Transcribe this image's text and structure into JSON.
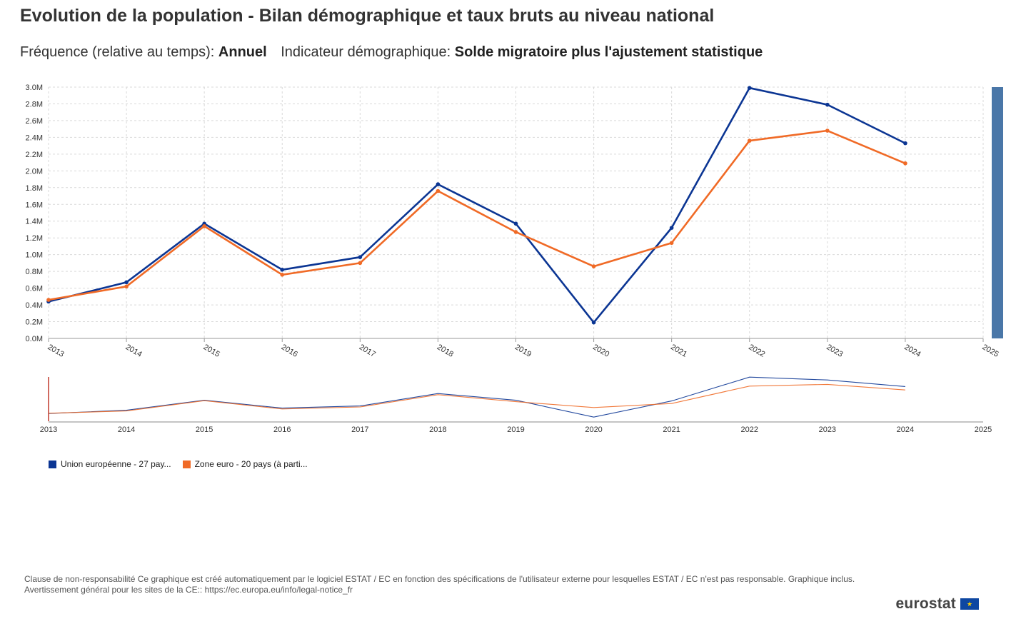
{
  "header": {
    "title": "Evolution de la population - Bilan démographique et taux bruts au niveau national",
    "frequency_label": "Fréquence (relative au temps):",
    "frequency_value": "Annuel",
    "indicator_label": "Indicateur démographique:",
    "indicator_value": "Solde migratoire plus l'ajustement statistique"
  },
  "chart_data": {
    "type": "line",
    "title": "Evolution de la population - Bilan démographique et taux bruts au niveau national",
    "x": [
      2013,
      2014,
      2015,
      2016,
      2017,
      2018,
      2019,
      2020,
      2021,
      2022,
      2023,
      2024
    ],
    "x_ticks": [
      "2013",
      "2014",
      "2015",
      "2016",
      "2017",
      "2018",
      "2019",
      "2020",
      "2021",
      "2022",
      "2023",
      "2024",
      "2025"
    ],
    "xlim": [
      2013,
      2025
    ],
    "ylim": [
      0,
      3.0
    ],
    "y_ticks": [
      "0.0M",
      "0.2M",
      "0.4M",
      "0.6M",
      "0.8M",
      "1.0M",
      "1.2M",
      "1.4M",
      "1.6M",
      "1.8M",
      "2.0M",
      "2.2M",
      "2.4M",
      "2.6M",
      "2.8M",
      "3.0M"
    ],
    "y_unit": "millions",
    "grid": true,
    "series": [
      {
        "name": "Union européenne - 27 pay...",
        "color": "#0b3593",
        "values": [
          0.44,
          0.67,
          1.37,
          0.82,
          0.97,
          1.84,
          1.37,
          0.19,
          1.32,
          2.99,
          2.79,
          2.33
        ]
      },
      {
        "name": "Zone euro - 20 pays (à parti...",
        "color": "#f06a26",
        "values": [
          0.46,
          0.62,
          1.34,
          0.76,
          0.9,
          1.76,
          1.27,
          0.86,
          1.14,
          2.36,
          2.48,
          2.09
        ]
      }
    ],
    "navigator_ticks": [
      "2013",
      "2014",
      "2015",
      "2016",
      "2017",
      "2018",
      "2019",
      "2020",
      "2021",
      "2022",
      "2023",
      "2024",
      "2025"
    ]
  },
  "footer": {
    "disclaimer_line1": "Clause de non-responsabilité Ce graphique est créé automatiquement par le logiciel ESTAT / EC en fonction des spécifications de l'utilisateur externe pour lesquelles ESTAT / EC n'est pas responsable. Graphique inclus.",
    "disclaimer_line2": "Avertissement général pour les sites de la CE:: https://ec.europa.eu/info/legal-notice_fr",
    "logo_text": "eurostat"
  }
}
